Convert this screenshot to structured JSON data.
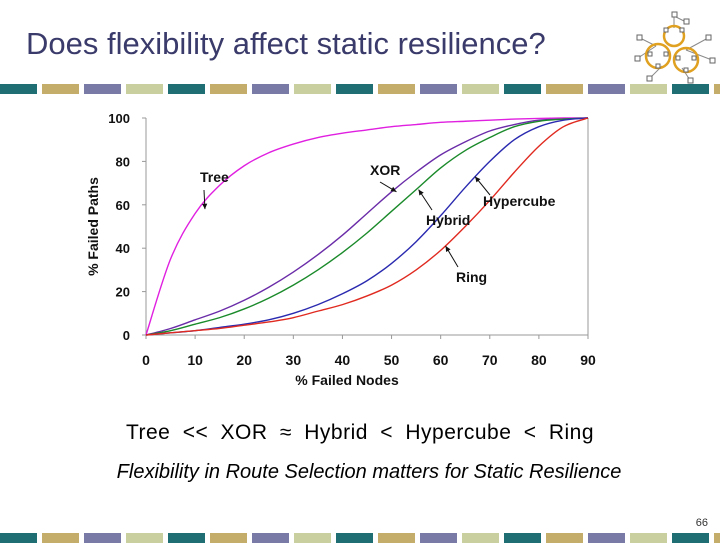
{
  "slide": {
    "title": "Does flexibility affect static resilience?",
    "ranking_text": "Tree << XOR ≈ Hybrid < Hypercube < Ring",
    "caption": "Flexibility in Route Selection matters for Static Resilience",
    "page_number": "66",
    "stripe_colors": [
      "#1f6e73",
      "#c4ad6a",
      "#7a7aa6",
      "#c9cf9f"
    ]
  },
  "chart_data": {
    "type": "line",
    "title": "",
    "xlabel": "% Failed Nodes",
    "ylabel": "% Failed Paths",
    "xlim": [
      0,
      90
    ],
    "ylim": [
      0,
      100
    ],
    "x_ticks": [
      "0",
      "10",
      "20",
      "30",
      "40",
      "50",
      "60",
      "70",
      "80",
      "90"
    ],
    "y_ticks": [
      "0",
      "20",
      "40",
      "60",
      "80",
      "100"
    ],
    "grid": false,
    "series": [
      {
        "name": "Tree",
        "color": "#e020e0",
        "x": [
          0,
          5,
          10,
          15,
          20,
          25,
          30,
          35,
          40,
          45,
          50,
          55,
          60,
          65,
          70,
          75,
          80,
          85,
          90
        ],
        "y": [
          0,
          35,
          56,
          69,
          78,
          84,
          88,
          91,
          93,
          94.5,
          96,
          97,
          98,
          98.5,
          99,
          99.5,
          99.8,
          100,
          100
        ]
      },
      {
        "name": "XOR",
        "color": "#6a2ca8",
        "x": [
          0,
          5,
          10,
          15,
          20,
          25,
          30,
          35,
          40,
          45,
          50,
          55,
          60,
          65,
          70,
          75,
          80,
          85,
          90
        ],
        "y": [
          0,
          3,
          7,
          11,
          16,
          22,
          29,
          37,
          46,
          56,
          66,
          75,
          83,
          89,
          94,
          97,
          99,
          99.5,
          100
        ]
      },
      {
        "name": "Hybrid",
        "color": "#1a8a2a",
        "x": [
          0,
          5,
          10,
          15,
          20,
          25,
          30,
          35,
          40,
          45,
          50,
          55,
          60,
          65,
          70,
          75,
          80,
          85,
          90
        ],
        "y": [
          0,
          2,
          5,
          8,
          12,
          17,
          23,
          30,
          38,
          47,
          57,
          67,
          77,
          85,
          91,
          96,
          98.5,
          99.5,
          100
        ]
      },
      {
        "name": "Hypercube",
        "color": "#2a2ab0",
        "x": [
          0,
          5,
          10,
          15,
          20,
          25,
          30,
          35,
          40,
          45,
          50,
          55,
          60,
          65,
          70,
          75,
          80,
          85,
          90
        ],
        "y": [
          0,
          1,
          2,
          3.5,
          5,
          7,
          10,
          14,
          19,
          25,
          33,
          43,
          55,
          68,
          80,
          90,
          96,
          99,
          100
        ]
      },
      {
        "name": "Ring",
        "color": "#e02a20",
        "x": [
          0,
          5,
          10,
          15,
          20,
          25,
          30,
          35,
          40,
          45,
          50,
          55,
          60,
          65,
          70,
          75,
          80,
          85,
          90
        ],
        "y": [
          0,
          1,
          2,
          3,
          4.5,
          6,
          8,
          11,
          14,
          18,
          23,
          30,
          39,
          50,
          62,
          75,
          87,
          96,
          100
        ]
      }
    ],
    "annotations": [
      {
        "text": "Tree",
        "series": "Tree"
      },
      {
        "text": "XOR",
        "series": "XOR"
      },
      {
        "text": "Hybrid",
        "series": "Hybrid"
      },
      {
        "text": "Hypercube",
        "series": "Hypercube"
      },
      {
        "text": "Ring",
        "series": "Ring"
      }
    ]
  }
}
